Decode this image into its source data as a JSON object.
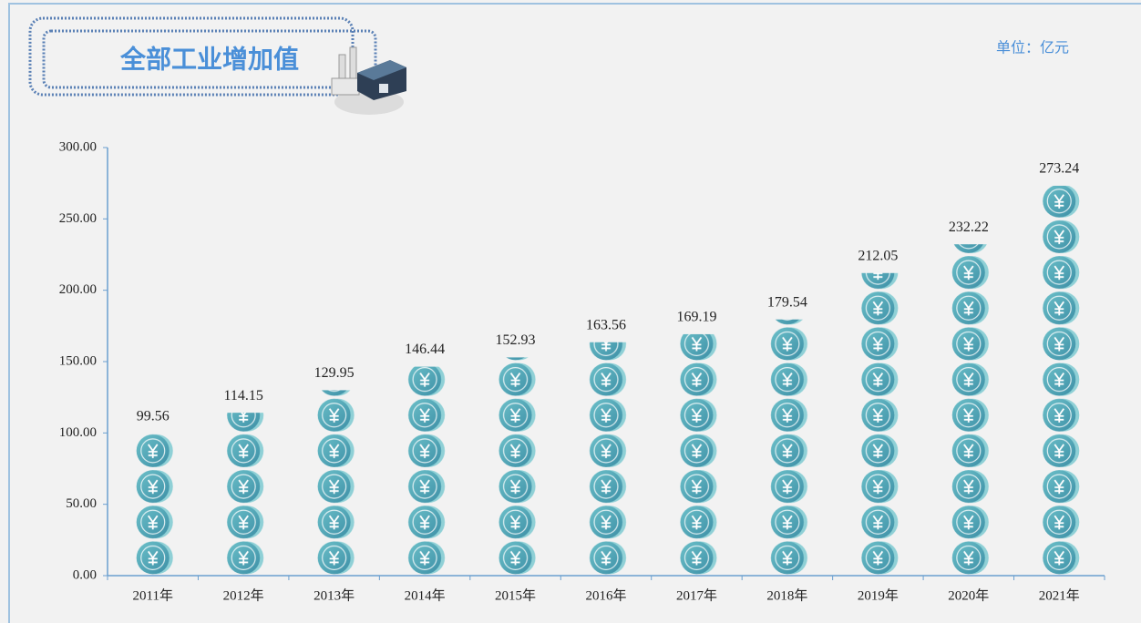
{
  "chart_data": {
    "type": "pictorial_bar",
    "title": "全部工业增加值",
    "unit_label": "单位：亿元",
    "categories": [
      "2011年",
      "2012年",
      "2013年",
      "2014年",
      "2015年",
      "2016年",
      "2017年",
      "2018年",
      "2019年",
      "2020年",
      "2021年"
    ],
    "values": [
      99.56,
      114.15,
      129.95,
      146.44,
      152.93,
      163.56,
      169.19,
      179.54,
      212.05,
      232.22,
      273.24
    ],
    "color": "#4aa3b5",
    "ylim": [
      0,
      300
    ],
    "yticks": [
      {
        "value": 0,
        "label": "0.00"
      },
      {
        "value": 50,
        "label": "50.00"
      },
      {
        "value": 100,
        "label": "100.00"
      },
      {
        "value": 150,
        "label": "150.00"
      },
      {
        "value": 200,
        "label": "200.00"
      },
      {
        "value": 250,
        "label": "250.00"
      },
      {
        "value": 300,
        "label": "300.00"
      }
    ]
  }
}
